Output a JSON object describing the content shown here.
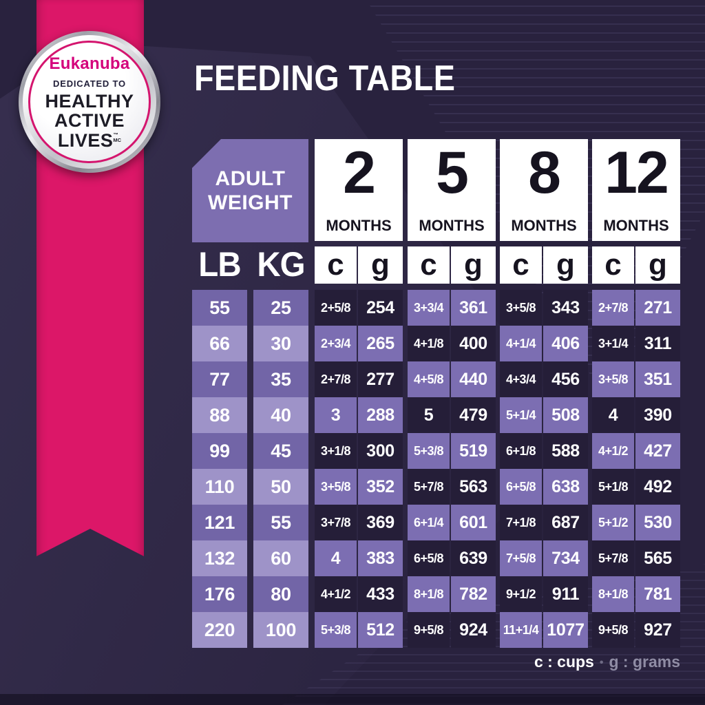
{
  "title": "FEEDING TABLE",
  "badge": {
    "brand": "Eukanuba",
    "tagline": "DEDICATED TO",
    "headline": [
      "HEALTHY",
      "ACTIVE",
      "LIVES"
    ],
    "trademark_top": "™",
    "trademark_bottom": "MC"
  },
  "table": {
    "corner_label": "ADULT WEIGHT",
    "months": [
      {
        "value": "2",
        "unit": "MONTHS"
      },
      {
        "value": "5",
        "unit": "MONTHS"
      },
      {
        "value": "8",
        "unit": "MONTHS"
      },
      {
        "value": "12",
        "unit": "MONTHS"
      }
    ],
    "weight_units": [
      "LB",
      "KG"
    ],
    "units": [
      "c",
      "g",
      "c",
      "g",
      "c",
      "g",
      "c",
      "g"
    ]
  },
  "legend": {
    "cups": "c : cups",
    "separator": "•",
    "grams": "g : grams"
  },
  "colors": {
    "bg": "#29223e",
    "cell-dark": "#251e38",
    "cell-purple": "#7c6eb2",
    "weight-med": "#7265a7",
    "weight-light": "#9e93c8",
    "header-purple": "#7d6eb0",
    "white": "#ffffff",
    "ink": "#16131f",
    "pink": "#dc1768",
    "brand-pink": "#d4017b",
    "legend-gray": "#8f8ca4"
  },
  "chart_data": {
    "type": "table",
    "title": "FEEDING TABLE",
    "units_note": "c = cups, g = grams",
    "columns": [
      "LB",
      "KG",
      "2 MONTHS c",
      "2 MONTHS g",
      "5 MONTHS c",
      "5 MONTHS g",
      "8 MONTHS c",
      "8 MONTHS g",
      "12 MONTHS c",
      "12 MONTHS g"
    ],
    "rows": [
      [
        "55",
        "25",
        "2+5/8",
        "254",
        "3+3/4",
        "361",
        "3+5/8",
        "343",
        "2+7/8",
        "271"
      ],
      [
        "66",
        "30",
        "2+3/4",
        "265",
        "4+1/8",
        "400",
        "4+1/4",
        "406",
        "3+1/4",
        "311"
      ],
      [
        "77",
        "35",
        "2+7/8",
        "277",
        "4+5/8",
        "440",
        "4+3/4",
        "456",
        "3+5/8",
        "351"
      ],
      [
        "88",
        "40",
        "3",
        "288",
        "5",
        "479",
        "5+1/4",
        "508",
        "4",
        "390"
      ],
      [
        "99",
        "45",
        "3+1/8",
        "300",
        "5+3/8",
        "519",
        "6+1/8",
        "588",
        "4+1/2",
        "427"
      ],
      [
        "110",
        "50",
        "3+5/8",
        "352",
        "5+7/8",
        "563",
        "6+5/8",
        "638",
        "5+1/8",
        "492"
      ],
      [
        "121",
        "55",
        "3+7/8",
        "369",
        "6+1/4",
        "601",
        "7+1/8",
        "687",
        "5+1/2",
        "530"
      ],
      [
        "132",
        "60",
        "4",
        "383",
        "6+5/8",
        "639",
        "7+5/8",
        "734",
        "5+7/8",
        "565"
      ],
      [
        "176",
        "80",
        "4+1/2",
        "433",
        "8+1/8",
        "782",
        "9+1/2",
        "911",
        "8+1/8",
        "781"
      ],
      [
        "220",
        "100",
        "5+3/8",
        "512",
        "9+5/8",
        "924",
        "11+1/4",
        "1077",
        "9+5/8",
        "927"
      ]
    ]
  }
}
